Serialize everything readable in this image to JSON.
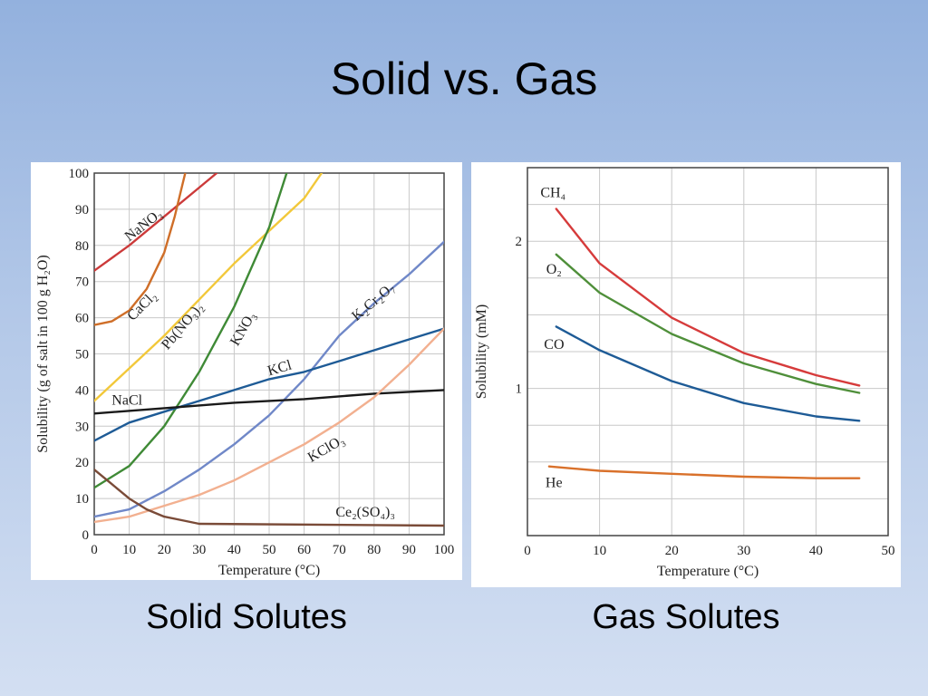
{
  "slide": {
    "title": "Solid vs. Gas",
    "left_caption": "Solid Solutes",
    "right_caption": "Gas Solutes"
  },
  "chart_data": [
    {
      "id": "solid",
      "type": "line",
      "xlabel": "Temperature (°C)",
      "ylabel": "Solubility (g of salt in 100 g H₂O)",
      "xlim": [
        0,
        100
      ],
      "ylim": [
        0,
        100
      ],
      "xticks": [
        0,
        10,
        20,
        30,
        40,
        50,
        60,
        70,
        80,
        90,
        100
      ],
      "yticks": [
        0,
        10,
        20,
        30,
        40,
        50,
        60,
        70,
        80,
        90,
        100
      ],
      "grid": true,
      "series": [
        {
          "name": "NaNO₃",
          "color": "#cc3a3a",
          "points": [
            [
              0,
              73
            ],
            [
              10,
              80
            ],
            [
              20,
              88
            ],
            [
              30,
              96
            ],
            [
              35,
              100
            ]
          ],
          "label": {
            "x": 10,
            "y": 81,
            "angle": -38
          }
        },
        {
          "name": "CaCl₂",
          "color": "#cf6e28",
          "points": [
            [
              0,
              58
            ],
            [
              5,
              59
            ],
            [
              10,
              62
            ],
            [
              15,
              68
            ],
            [
              20,
              78
            ],
            [
              23,
              88
            ],
            [
              25,
              96
            ],
            [
              26,
              100
            ]
          ],
          "label": {
            "x": 11,
            "y": 59,
            "angle": -45
          }
        },
        {
          "name": "Pb(NO₃)₂",
          "color": "#f2c83a",
          "points": [
            [
              0,
              37
            ],
            [
              10,
              46
            ],
            [
              20,
              55
            ],
            [
              30,
              65
            ],
            [
              40,
              75
            ],
            [
              50,
              84
            ],
            [
              60,
              93
            ],
            [
              65,
              100
            ]
          ],
          "label": {
            "x": 21,
            "y": 51,
            "angle": -50
          }
        },
        {
          "name": "KNO₃",
          "color": "#3f8a36",
          "points": [
            [
              0,
              13
            ],
            [
              10,
              19
            ],
            [
              20,
              30
            ],
            [
              30,
              45
            ],
            [
              40,
              63
            ],
            [
              50,
              85
            ],
            [
              55,
              100
            ]
          ],
          "label": {
            "x": 41,
            "y": 52,
            "angle": -60
          }
        },
        {
          "name": "K₂Cr₂O₇",
          "color": "#7088c8",
          "points": [
            [
              0,
              5
            ],
            [
              10,
              7
            ],
            [
              20,
              12
            ],
            [
              30,
              18
            ],
            [
              40,
              25
            ],
            [
              50,
              33
            ],
            [
              60,
              43
            ],
            [
              70,
              55
            ],
            [
              80,
              64
            ],
            [
              90,
              72
            ],
            [
              100,
              81
            ]
          ],
          "label": {
            "x": 75,
            "y": 59,
            "angle": -40
          }
        },
        {
          "name": "KCl",
          "color": "#1e5b96",
          "points": [
            [
              0,
              26
            ],
            [
              10,
              31
            ],
            [
              20,
              34
            ],
            [
              30,
              37
            ],
            [
              40,
              40
            ],
            [
              50,
              43
            ],
            [
              60,
              45
            ],
            [
              70,
              48
            ],
            [
              80,
              51
            ],
            [
              90,
              54
            ],
            [
              100,
              57
            ]
          ],
          "label": {
            "x": 50,
            "y": 44,
            "angle": -16
          }
        },
        {
          "name": "NaCl",
          "color": "#1a1a1a",
          "points": [
            [
              0,
              33.5
            ],
            [
              20,
              35
            ],
            [
              40,
              36.5
            ],
            [
              60,
              37.5
            ],
            [
              80,
              39
            ],
            [
              100,
              40
            ]
          ],
          "label": {
            "x": 5,
            "y": 36,
            "angle": 0
          }
        },
        {
          "name": "KClO₃",
          "color": "#f2b090",
          "points": [
            [
              0,
              3.5
            ],
            [
              10,
              5
            ],
            [
              20,
              8
            ],
            [
              30,
              11
            ],
            [
              40,
              15
            ],
            [
              50,
              20
            ],
            [
              60,
              25
            ],
            [
              70,
              31
            ],
            [
              80,
              38
            ],
            [
              90,
              47
            ],
            [
              100,
              57
            ]
          ],
          "label": {
            "x": 62,
            "y": 20,
            "angle": -30
          }
        },
        {
          "name": "Ce₂(SO₄)₃",
          "color": "#7a4b38",
          "points": [
            [
              0,
              18
            ],
            [
              5,
              14
            ],
            [
              10,
              10
            ],
            [
              15,
              7
            ],
            [
              20,
              5
            ],
            [
              25,
              4
            ],
            [
              30,
              3
            ],
            [
              100,
              2.5
            ]
          ],
          "label": {
            "x": 69,
            "y": 5,
            "angle": 0
          }
        }
      ]
    },
    {
      "id": "gas",
      "type": "line",
      "xlabel": "Temperature (°C)",
      "ylabel": "Solubility (mM)",
      "xlim": [
        0,
        50
      ],
      "ylim": [
        0,
        2.5
      ],
      "xticks": [
        0,
        10,
        20,
        30,
        40,
        50
      ],
      "yticks_labeled": [
        1.0,
        2.0
      ],
      "grid": true,
      "series": [
        {
          "name": "CH₄",
          "color": "#d63b3b",
          "points": [
            [
              4,
              2.22
            ],
            [
              10,
              1.85
            ],
            [
              20,
              1.48
            ],
            [
              30,
              1.24
            ],
            [
              40,
              1.09
            ],
            [
              46,
              1.02
            ]
          ],
          "label": {
            "x": 1.8,
            "y": 2.3
          }
        },
        {
          "name": "O₂",
          "color": "#4f8f3a",
          "points": [
            [
              4,
              1.91
            ],
            [
              10,
              1.65
            ],
            [
              20,
              1.37
            ],
            [
              30,
              1.17
            ],
            [
              40,
              1.03
            ],
            [
              46,
              0.97
            ]
          ],
          "label": {
            "x": 2.6,
            "y": 1.78
          }
        },
        {
          "name": "CO",
          "color": "#1e5b96",
          "points": [
            [
              4,
              1.42
            ],
            [
              10,
              1.26
            ],
            [
              20,
              1.05
            ],
            [
              30,
              0.9
            ],
            [
              40,
              0.81
            ],
            [
              46,
              0.78
            ]
          ],
          "label": {
            "x": 2.3,
            "y": 1.27
          }
        },
        {
          "name": "He",
          "color": "#d9712b",
          "points": [
            [
              3,
              0.47
            ],
            [
              10,
              0.44
            ],
            [
              20,
              0.42
            ],
            [
              30,
              0.4
            ],
            [
              40,
              0.39
            ],
            [
              46,
              0.39
            ]
          ],
          "label": {
            "x": 2.5,
            "y": 0.33
          }
        }
      ]
    }
  ]
}
